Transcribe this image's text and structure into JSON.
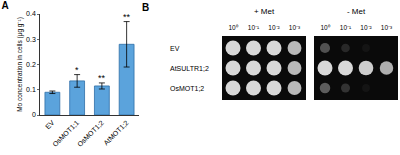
{
  "chart_data": {
    "type": "bar",
    "title": "A",
    "y_label": "Mo concentration in cells (μg g⁻¹)",
    "categories": [
      "EV",
      "OsMOT1;1",
      "OsMOT1;2",
      "AtMOT1;2"
    ],
    "values": [
      0.09,
      0.135,
      0.115,
      0.28
    ],
    "errors": [
      0.005,
      0.025,
      0.012,
      0.09
    ],
    "annotations": [
      {
        "category": "OsMOT1;1",
        "text": "*"
      },
      {
        "category": "OsMOT1;2",
        "text": "**"
      },
      {
        "category": "AtMOT1;2",
        "text": "**"
      }
    ],
    "color": "#5ba3dc",
    "ylim": [
      0,
      0.4
    ],
    "yticks": [
      0,
      0.1,
      0.2,
      0.3,
      0.4
    ],
    "grid": false
  },
  "spot_assay": {
    "label": "B",
    "conditions": [
      "+ Met",
      "- Met"
    ],
    "dilutions": [
      "10⁰",
      "10⁻¹",
      "10⁻²",
      "10⁻³"
    ],
    "strains": [
      "EV",
      "AtSULTR1;2",
      "OsMOT1;2"
    ],
    "growth": [
      [
        [
          1,
          1,
          1,
          0.85
        ],
        [
          1,
          1,
          1,
          0.85
        ],
        [
          1,
          1,
          1,
          0.85
        ]
      ],
      [
        [
          0.35,
          0.15,
          0.05,
          0
        ],
        [
          1,
          1,
          0.95,
          0.8
        ],
        [
          0.4,
          0.2,
          0.05,
          0
        ]
      ]
    ]
  }
}
